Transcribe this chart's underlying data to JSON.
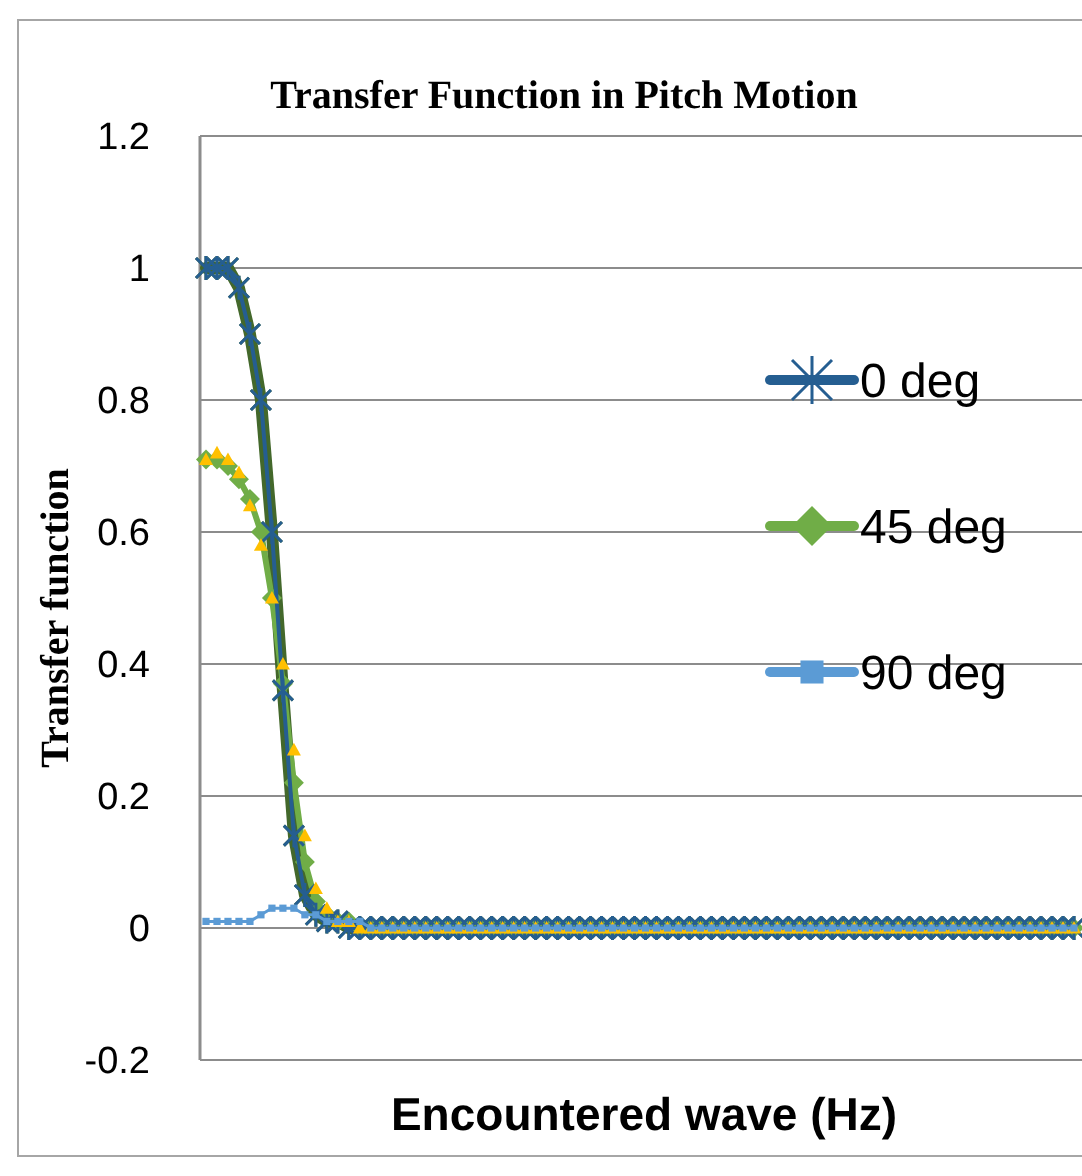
{
  "chart_data": {
    "type": "line",
    "title": "Transfer Function in Pitch Motion",
    "xlabel": "Encountered wave (Hz)",
    "ylabel": "Transfer function",
    "categories": [
      null,
      null,
      null,
      null,
      null,
      null,
      null,
      null,
      null,
      null,
      null,
      null,
      null,
      null,
      null,
      null,
      null,
      null,
      null,
      null,
      null,
      null,
      null,
      null,
      null,
      null,
      null,
      null,
      null,
      null,
      null,
      null,
      null,
      null,
      null,
      null,
      null,
      null,
      null,
      null,
      null,
      null,
      null,
      null,
      null,
      null,
      null,
      null,
      null,
      null,
      null,
      null,
      null,
      null,
      null,
      null,
      null,
      null,
      null,
      null,
      null,
      null,
      null,
      null,
      null,
      null,
      null,
      null,
      null,
      null,
      null,
      null,
      null,
      null,
      null,
      null,
      null,
      null,
      null,
      null
    ],
    "ylim": [
      -0.2,
      1.2
    ],
    "yticks": [
      -0.2,
      {
        "value": 0,
        "label": "0"
      },
      0.2,
      0.4,
      0.6,
      0.8,
      {
        "value": 1,
        "label": "1"
      },
      1.2
    ],
    "grid": "y",
    "legend": "right",
    "line_style": "solid",
    "series": [
      {
        "name": "0 deg",
        "color": "#255e91",
        "marker": "cross",
        "values": [
          1.0,
          1.0,
          1.0,
          0.97,
          0.9,
          0.8,
          0.6,
          0.36,
          0.14,
          0.05,
          0.02,
          0.01,
          0.01,
          0,
          0,
          0,
          0,
          0,
          0,
          0,
          0,
          0,
          0,
          0,
          0,
          0,
          0,
          0,
          0,
          0,
          0,
          0,
          0,
          0,
          0,
          0,
          0,
          0,
          0,
          0,
          0,
          0,
          0,
          0,
          0,
          0,
          0,
          0,
          0,
          0,
          0,
          0,
          0,
          0,
          0,
          0,
          0,
          0,
          0,
          0,
          0,
          0,
          0,
          0,
          0,
          0,
          0,
          0,
          0,
          0,
          0,
          0,
          0,
          0,
          0,
          0,
          0,
          0,
          0,
          0
        ]
      },
      {
        "name": "45 deg",
        "color": "#70ad47",
        "marker": "diamond",
        "values": [
          0.71,
          0.71,
          0.7,
          0.68,
          0.65,
          0.6,
          0.5,
          0.37,
          0.22,
          0.1,
          0.04,
          0.02,
          0.01,
          0.01,
          0,
          0,
          0,
          0,
          0,
          0,
          0,
          0,
          0,
          0,
          0,
          0,
          0,
          0,
          0,
          0,
          0,
          0,
          0,
          0,
          0,
          0,
          0,
          0,
          0,
          0,
          0,
          0,
          0,
          0,
          0,
          0,
          0,
          0,
          0,
          0,
          0,
          0,
          0,
          0,
          0,
          0,
          0,
          0,
          0,
          0,
          0,
          0,
          0,
          0,
          0,
          0,
          0,
          0,
          0,
          0,
          0,
          0,
          0,
          0,
          0,
          0,
          0,
          0,
          0,
          0
        ]
      },
      {
        "name": "90 deg",
        "color": "#5b9bd5",
        "marker": "square",
        "values": [
          0.01,
          0.01,
          0.01,
          0.01,
          0.01,
          0.02,
          0.03,
          0.03,
          0.03,
          0.02,
          0.02,
          0.01,
          0.01,
          0.01,
          0.01,
          0,
          0,
          0,
          0,
          0,
          0,
          0,
          0,
          0,
          0,
          0,
          0,
          0,
          0,
          0,
          0,
          0,
          0,
          0,
          0,
          0,
          0,
          0,
          0,
          0,
          0,
          0,
          0,
          0,
          0,
          0,
          0,
          0,
          0,
          0,
          0,
          0,
          0,
          0,
          0,
          0,
          0,
          0,
          0,
          0,
          0,
          0,
          0,
          0,
          0,
          0,
          0,
          0,
          0,
          0,
          0,
          0,
          0,
          0,
          0,
          0,
          0,
          0,
          0,
          0
        ]
      },
      {
        "type": "scatter",
        "color": "#ffc000",
        "marker": "triangle",
        "values": [
          0.71,
          0.72,
          0.71,
          0.69,
          0.64,
          0.58,
          0.5,
          0.4,
          0.27,
          0.14,
          0.06,
          0.03,
          0.01,
          0.01,
          0,
          0,
          0,
          0,
          0,
          0,
          0,
          0,
          0,
          0,
          0,
          0,
          0,
          0,
          0,
          0,
          0,
          0,
          0,
          0,
          0,
          0,
          0,
          0,
          0,
          0,
          0,
          0,
          0,
          0,
          0,
          0,
          0,
          0,
          0,
          0,
          0,
          0,
          0,
          0,
          0,
          0,
          0,
          0,
          0,
          0,
          0,
          0,
          0,
          0,
          0,
          0,
          0,
          0,
          0,
          0,
          0,
          0,
          0,
          0,
          0,
          0,
          0,
          0,
          0,
          0
        ]
      },
      {
        "color": "#43682b",
        "marker": "cross",
        "values": [
          1.0,
          1.0,
          1.0,
          0.97,
          0.9,
          0.8,
          0.6,
          0.36,
          0.14,
          0.05,
          0.02,
          0.01,
          0.01,
          0,
          0,
          0,
          0,
          0,
          0,
          0,
          0,
          0,
          0,
          0,
          0,
          0,
          0,
          0,
          0,
          0,
          0,
          0,
          0,
          0,
          0,
          0,
          0,
          0,
          0,
          0,
          0,
          0,
          0,
          0,
          0,
          0,
          0,
          0,
          0,
          0,
          0,
          0,
          0,
          0,
          0,
          0,
          0,
          0,
          0,
          0,
          0,
          0,
          0,
          0,
          0,
          0,
          0,
          0,
          0,
          0,
          0,
          0,
          0,
          0,
          0,
          0,
          0,
          0,
          0,
          0
        ]
      }
    ]
  }
}
